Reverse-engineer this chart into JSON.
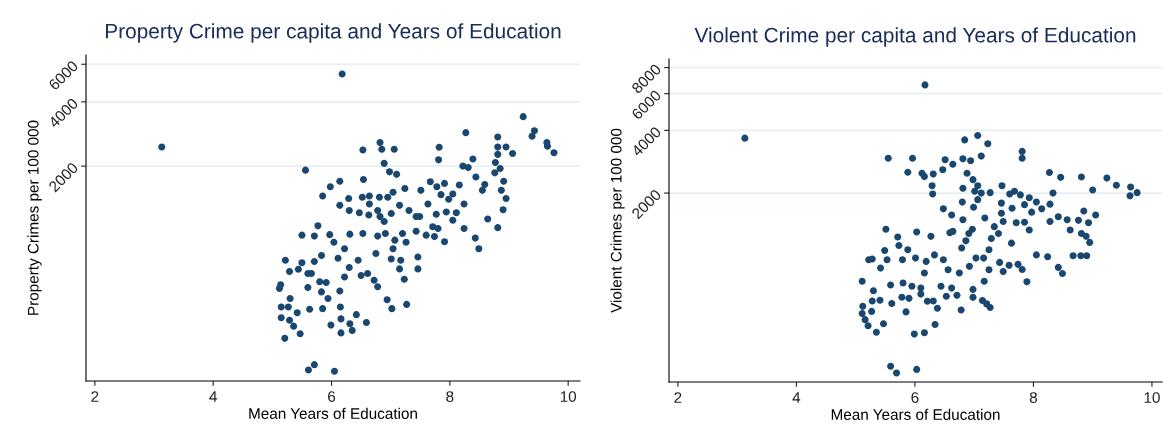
{
  "chart_data": [
    {
      "type": "scatter",
      "title": "Property Crime per capita and Years of Education",
      "xlabel": "Mean Years of Education",
      "ylabel": "Property Crimes per 100 000",
      "log": "y",
      "grid": "y",
      "marker": "circle",
      "xlim": [
        1.85,
        10.2
      ],
      "ylim": [
        197,
        6630
      ],
      "xticks": [
        2,
        4,
        6,
        8,
        10
      ],
      "yticks": [
        2000,
        4000,
        6000
      ],
      "series": [
        {
          "color": "#1a476f",
          "x": [
            3.13,
            6.18,
            5.12,
            5.14,
            5.15,
            5.27,
            5.15,
            5.29,
            5.36,
            5.21,
            5.47,
            5.42,
            5.3,
            5.63,
            5.6,
            5.29,
            5.22,
            5.44,
            5.5,
            5.6,
            5.66,
            5.71,
            5.83,
            5.77,
            5.5,
            5.71,
            5.97,
            6.04,
            5.8,
            5.91,
            5.83,
            5.94,
            5.85,
            6.14,
            6.15,
            5.99,
            6.16,
            6.16,
            6.35,
            6.31,
            6.42,
            6.59,
            5.61,
            5.71,
            6.05,
            5.56,
            5.85,
            5.98,
            6.14,
            6.14,
            6.29,
            6.3,
            6.31,
            6.11,
            6.22,
            6.22,
            6.3,
            6.45,
            6.5,
            6.61,
            6.53,
            6.52,
            6.54,
            6.53,
            6.82,
            6.85,
            7.06,
            6.89,
            6.98,
            7.1,
            7.24,
            7.04,
            6.95,
            6.81,
            6.64,
            6.64,
            6.63,
            6.47,
            6.78,
            6.89,
            7.01,
            7.15,
            7.31,
            7.49,
            7.43,
            7.63,
            7.51,
            7.67,
            7.78,
            7.91,
            7.85,
            7.98,
            7.82,
            7.81,
            8.27,
            8.22,
            8.31,
            8.39,
            8.44,
            8.16,
            8.24,
            8.05,
            7.94,
            8.11,
            8.05,
            7.77,
            7.71,
            7.8,
            7.91,
            7.74,
            7.6,
            7.43,
            7.26,
            7.2,
            7.07,
            7.04,
            7.01,
            7.17,
            7.15,
            7.23,
            6.94,
            7.02,
            7.27,
            7.46,
            7.46,
            6.75,
            6.78,
            6.72,
            6.91,
            6.78,
            6.82,
            8.24,
            8.43,
            8.49,
            8.64,
            8.81,
            8.55,
            8.59,
            8.76,
            8.85,
            8.77,
            8.87,
            8.91,
            8.95,
            8.9,
            8.81,
            8.81,
            8.81,
            8.95,
            9.06,
            9.24,
            9.39,
            9.43,
            9.64,
            9.65,
            9.76
          ],
          "values": [
            2460,
            5400,
            535,
            556,
            438,
            438,
            390,
            379,
            356,
            312,
            328,
            411,
            480,
            427,
            540,
            642,
            725,
            657,
            705,
            628,
            628,
            715,
            763,
            1050,
            950,
            940,
            955,
            880,
            575,
            570,
            515,
            480,
            430,
            520,
            438,
            360,
            385,
            331,
            340,
            365,
            403,
            370,
            222,
            235,
            219,
            1915,
            1450,
            1600,
            1700,
            1310,
            1410,
            1240,
            960,
            740,
            605,
            820,
            670,
            725,
            615,
            628,
            967,
            1430,
            1730,
            2380,
            2580,
            2400,
            2400,
            2060,
            1880,
            1830,
            1570,
            1510,
            1430,
            1430,
            1450,
            1330,
            1180,
            1210,
            1240,
            1100,
            1200,
            1310,
            1240,
            1160,
            1160,
            1330,
            1540,
            1690,
            1600,
            1660,
            1470,
            1400,
            2450,
            2140,
            2870,
            2000,
            1970,
            2160,
            1780,
            1630,
            1330,
            1480,
            1220,
            1210,
            1116,
            1190,
            1039,
            1020,
            885,
            935,
            950,
            990,
            880,
            967,
            900,
            820,
            735,
            725,
            660,
            590,
            473,
            430,
            450,
            750,
            660,
            779,
            544,
            584,
            967,
            940,
            1160,
            1020,
            920,
            820,
            1130,
            1030,
            1540,
            1640,
            1860,
            1950,
            2080,
            1540,
            1700,
            1410,
            1250,
            2740,
            2460,
            2270,
            2460,
            2290,
            3410,
            2760,
            2930,
            2580,
            2480,
            2310
          ]
        }
      ]
    },
    {
      "type": "scatter",
      "title": "Violent Crime per capita and Years of Education",
      "xlabel": "Mean Years of Education",
      "ylabel": "Violent Crimes per 100 000",
      "log": "y",
      "grid": "y",
      "marker": "circle",
      "xlim": [
        1.85,
        10.17
      ],
      "ylim": [
        248,
        8800
      ],
      "xticks": [
        2,
        4,
        6,
        8,
        10
      ],
      "yticks": [
        2000,
        4000,
        6000,
        8000
      ],
      "series": [
        {
          "color": "#1a476f",
          "x": [
            3.13,
            6.17,
            5.11,
            5.12,
            5.11,
            5.16,
            5.21,
            5.27,
            5.28,
            5.3,
            5.35,
            5.41,
            5.47,
            5.22,
            5.28,
            5.42,
            5.49,
            5.51,
            5.53,
            5.59,
            5.61,
            5.71,
            5.73,
            5.79,
            5.88,
            5.78,
            5.85,
            5.9,
            5.8,
            5.95,
            6.01,
            6.03,
            6.1,
            6.1,
            6.16,
            6.21,
            6.19,
            5.99,
            6.16,
            6.34,
            6.31,
            6.27,
            6.33,
            6.38,
            6.44,
            6.48,
            6.53,
            6.56,
            6.62,
            6.59,
            6.64,
            6.71,
            6.75,
            6.78,
            6.79,
            6.86,
            6.92,
            6.98,
            6.98,
            7.03,
            7.16,
            7.17,
            7.25,
            7.25,
            7.21,
            7.27,
            7.14,
            6.97,
            6.91,
            6.81,
            6.8,
            6.99,
            7.06,
            7.18,
            7.29,
            7.34,
            7.41,
            7.46,
            7.46,
            7.49,
            7.43,
            7.49,
            7.63,
            7.59,
            7.74,
            7.81,
            7.89,
            7.64,
            7.6,
            7.68,
            7.78,
            7.85,
            7.93,
            7.97,
            8.05,
            8.14,
            8.28,
            7.71,
            7.85,
            7.93,
            8.05,
            8.24,
            8.28,
            8.42,
            8.57,
            8.33,
            8.27,
            8.46,
            8.62,
            8.67,
            8.42,
            8.49,
            8.76,
            8.85,
            8.93,
            8.81,
            8.89,
            8.95,
            8.8,
            8.9,
            9.05,
            8.81,
            9.0,
            9.24,
            9.4,
            9.64,
            9.63,
            9.75,
            7.81,
            7.81,
            6.84,
            7.06,
            7.23,
            7.12,
            6.81,
            6.94,
            6.51,
            6.64,
            6.47,
            6.31,
            6.12,
            6.16,
            5.96,
            5.55,
            5.88,
            6.29,
            6.3,
            6.88,
            6.98,
            7.06,
            7.12,
            7.01,
            6.81,
            7.27,
            7.47,
            6.48,
            6.62,
            6.03,
            5.59,
            5.69
          ],
          "values": [
            3670,
            6610,
            755,
            572,
            528,
            494,
            462,
            541,
            607,
            680,
            430,
            612,
            472,
            958,
            965,
            873,
            1060,
            1340,
            958,
            725,
            590,
            1230,
            1120,
            958,
            1070,
            633,
            538,
            625,
            740,
            714,
            975,
            1300,
            655,
            700,
            827,
            605,
            940,
            421,
            427,
            468,
            607,
            1240,
            1010,
            560,
            714,
            958,
            640,
            858,
            700,
            1290,
            1310,
            646,
            827,
            549,
            1090,
            1180,
            890,
            690,
            632,
            975,
            975,
            755,
            1070,
            858,
            588,
            565,
            610,
            1340,
            1280,
            1490,
            1810,
            1710,
            1860,
            1520,
            1210,
            1380,
            1280,
            1600,
            1790,
            1460,
            930,
            840,
            1150,
            900,
            910,
            860,
            750,
            1690,
            1980,
            2040,
            1960,
            1760,
            1900,
            1620,
            1810,
            1680,
            1770,
            1440,
            1450,
            1330,
            1010,
            990,
            1460,
            1540,
            1490,
            2000,
            2510,
            2380,
            1330,
            1000,
            880,
            822,
            1480,
            1640,
            1440,
            1280,
            1240,
            1160,
            1000,
            1000,
            1570,
            2390,
            2070,
            2360,
            2180,
            2140,
            1940,
            2010,
            3170,
            2940,
            3600,
            3780,
            3450,
            3010,
            2920,
            2860,
            2890,
            2750,
            2590,
            2470,
            2490,
            2400,
            2940,
            2940,
            2520,
            2170,
            1980,
            2490,
            2320,
            2170,
            2000,
            2040,
            2110,
            2010,
            2170,
            1680,
            1570,
            285,
            295,
            274
          ]
        }
      ]
    }
  ]
}
